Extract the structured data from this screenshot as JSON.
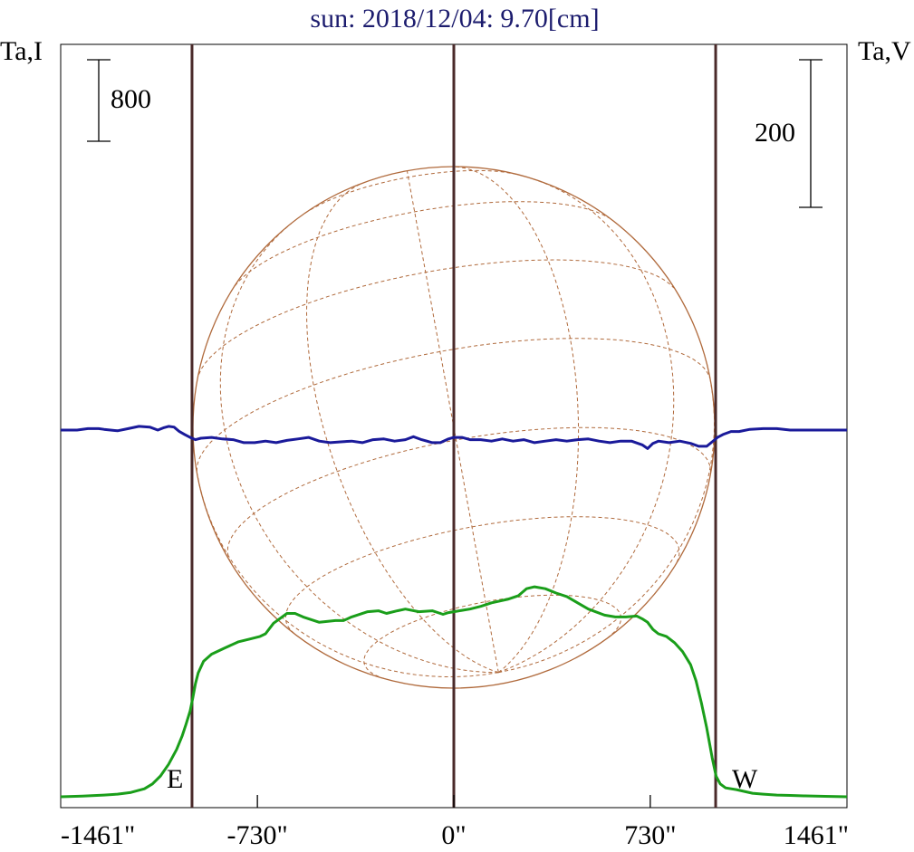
{
  "chart_data": {
    "type": "line",
    "title": "sun: 2018/12/04: 9.70[cm]",
    "y_left_label": "Ta,I",
    "y_right_label": "Ta,V",
    "xlim": [
      -1461,
      1461
    ],
    "x_ticks": [
      {
        "value": -1461,
        "label": "-1461\""
      },
      {
        "value": -730,
        "label": "-730\""
      },
      {
        "value": 0,
        "label": "0\""
      },
      {
        "value": 730,
        "label": "730\""
      },
      {
        "value": 1461,
        "label": "1461\""
      }
    ],
    "limb_markers": [
      {
        "value": -973,
        "label": "E"
      },
      {
        "value": 0,
        "label": ""
      },
      {
        "value": 973,
        "label": "W"
      }
    ],
    "scale_bars": [
      {
        "axis": "left",
        "value": 800,
        "label": "800"
      },
      {
        "axis": "right",
        "value": 200,
        "label": "200"
      }
    ],
    "colors": {
      "intensity": "#1a9e1a",
      "polarization": "#1a1a9a",
      "disk": "#b06a3c",
      "markers": "#4a2a2a",
      "title": "#1c1c6e"
    },
    "series": [
      {
        "id": "intensity",
        "axis": "left",
        "x": [
          -1461,
          -1380,
          -1300,
          -1250,
          -1200,
          -1150,
          -1120,
          -1090,
          -1060,
          -1030,
          -1010,
          -995,
          -980,
          -970,
          -960,
          -950,
          -930,
          -900,
          -850,
          -800,
          -760,
          -720,
          -700,
          -670,
          -620,
          -590,
          -560,
          -500,
          -440,
          -410,
          -380,
          -320,
          -280,
          -250,
          -210,
          -180,
          -130,
          -80,
          -50,
          -40,
          -20,
          0,
          20,
          60,
          100,
          140,
          200,
          240,
          270,
          300,
          340,
          380,
          420,
          460,
          500,
          560,
          600,
          640,
          680,
          700,
          720,
          740,
          760,
          790,
          820,
          850,
          880,
          900,
          920,
          940,
          960,
          975,
          990,
          1010,
          1050,
          1080,
          1110,
          1150,
          1200,
          1250,
          1300,
          1380,
          1461
        ],
        "y": [
          0.0,
          7.0,
          17.0,
          26.0,
          43.0,
          78.0,
          126.0,
          204.0,
          318.0,
          465.0,
          595.0,
          713.0,
          843.0,
          973.0,
          1112.0,
          1216.0,
          1330.0,
          1400.0,
          1462.0,
          1522.0,
          1548.0,
          1574.0,
          1600.0,
          1704.0,
          1800.0,
          1800.0,
          1765.0,
          1713.0,
          1730.0,
          1730.0,
          1765.0,
          1817.0,
          1826.0,
          1800.0,
          1826.0,
          1843.0,
          1817.0,
          1826.0,
          1800.0,
          1791.0,
          1808.0,
          1817.0,
          1826.0,
          1843.0,
          1869.0,
          1904.0,
          1939.0,
          1974.0,
          2043.0,
          2061.0,
          2043.0,
          2000.0,
          1965.0,
          1904.0,
          1843.0,
          1783.0,
          1765.0,
          1765.0,
          1774.0,
          1748.0,
          1713.0,
          1643.0,
          1600.0,
          1574.0,
          1513.0,
          1426.0,
          1296.0,
          1138.0,
          922.0,
          675.0,
          383.0,
          200.0,
          126.0,
          87.0,
          70.0,
          52.0,
          35.0,
          26.0,
          17.0,
          13.0,
          9.0,
          4.0,
          0.0
        ]
      },
      {
        "id": "polarization",
        "axis": "right",
        "x": [
          -1461,
          -1400,
          -1360,
          -1320,
          -1300,
          -1250,
          -1210,
          -1170,
          -1130,
          -1100,
          -1080,
          -1060,
          -1040,
          -1020,
          -1000,
          -980,
          -960,
          -940,
          -900,
          -860,
          -820,
          -780,
          -740,
          -700,
          -660,
          -620,
          -580,
          -540,
          -500,
          -460,
          -420,
          -380,
          -340,
          -300,
          -260,
          -220,
          -180,
          -150,
          -120,
          -100,
          -80,
          -50,
          -20,
          0,
          30,
          60,
          100,
          140,
          180,
          220,
          260,
          300,
          340,
          380,
          420,
          460,
          500,
          540,
          580,
          620,
          660,
          700,
          720,
          740,
          760,
          800,
          840,
          880,
          910,
          940,
          960,
          980,
          1000,
          1030,
          1060,
          1100,
          1150,
          1200,
          1250,
          1300,
          1350,
          1400,
          1461
        ],
        "y": [
          0.0,
          0.0,
          2.0,
          2.0,
          1.0,
          -1.0,
          2.0,
          5.0,
          4.0,
          0.0,
          3.0,
          5.0,
          4.0,
          -2.0,
          -6.0,
          -10.0,
          -13.0,
          -11.0,
          -10.0,
          -12.0,
          -13.0,
          -17.0,
          -17.0,
          -15.0,
          -17.0,
          -14.0,
          -12.0,
          -10.0,
          -15.0,
          -17.0,
          -16.0,
          -15.0,
          -17.0,
          -13.0,
          -12.0,
          -15.0,
          -13.0,
          -9.0,
          -13.0,
          -15.0,
          -17.0,
          -17.0,
          -12.0,
          -10.0,
          -10.0,
          -13.0,
          -13.0,
          -15.0,
          -12.0,
          -15.0,
          -13.0,
          -17.0,
          -15.0,
          -13.0,
          -15.0,
          -13.0,
          -12.0,
          -15.0,
          -17.0,
          -15.0,
          -15.0,
          -20.0,
          -25.0,
          -18.0,
          -15.0,
          -17.0,
          -15.0,
          -18.0,
          -22.0,
          -22.0,
          -16.0,
          -10.0,
          -6.0,
          -2.0,
          -2.0,
          1.0,
          2.0,
          2.0,
          0.0,
          0.0,
          0.0,
          0.0,
          0.0
        ]
      }
    ]
  }
}
